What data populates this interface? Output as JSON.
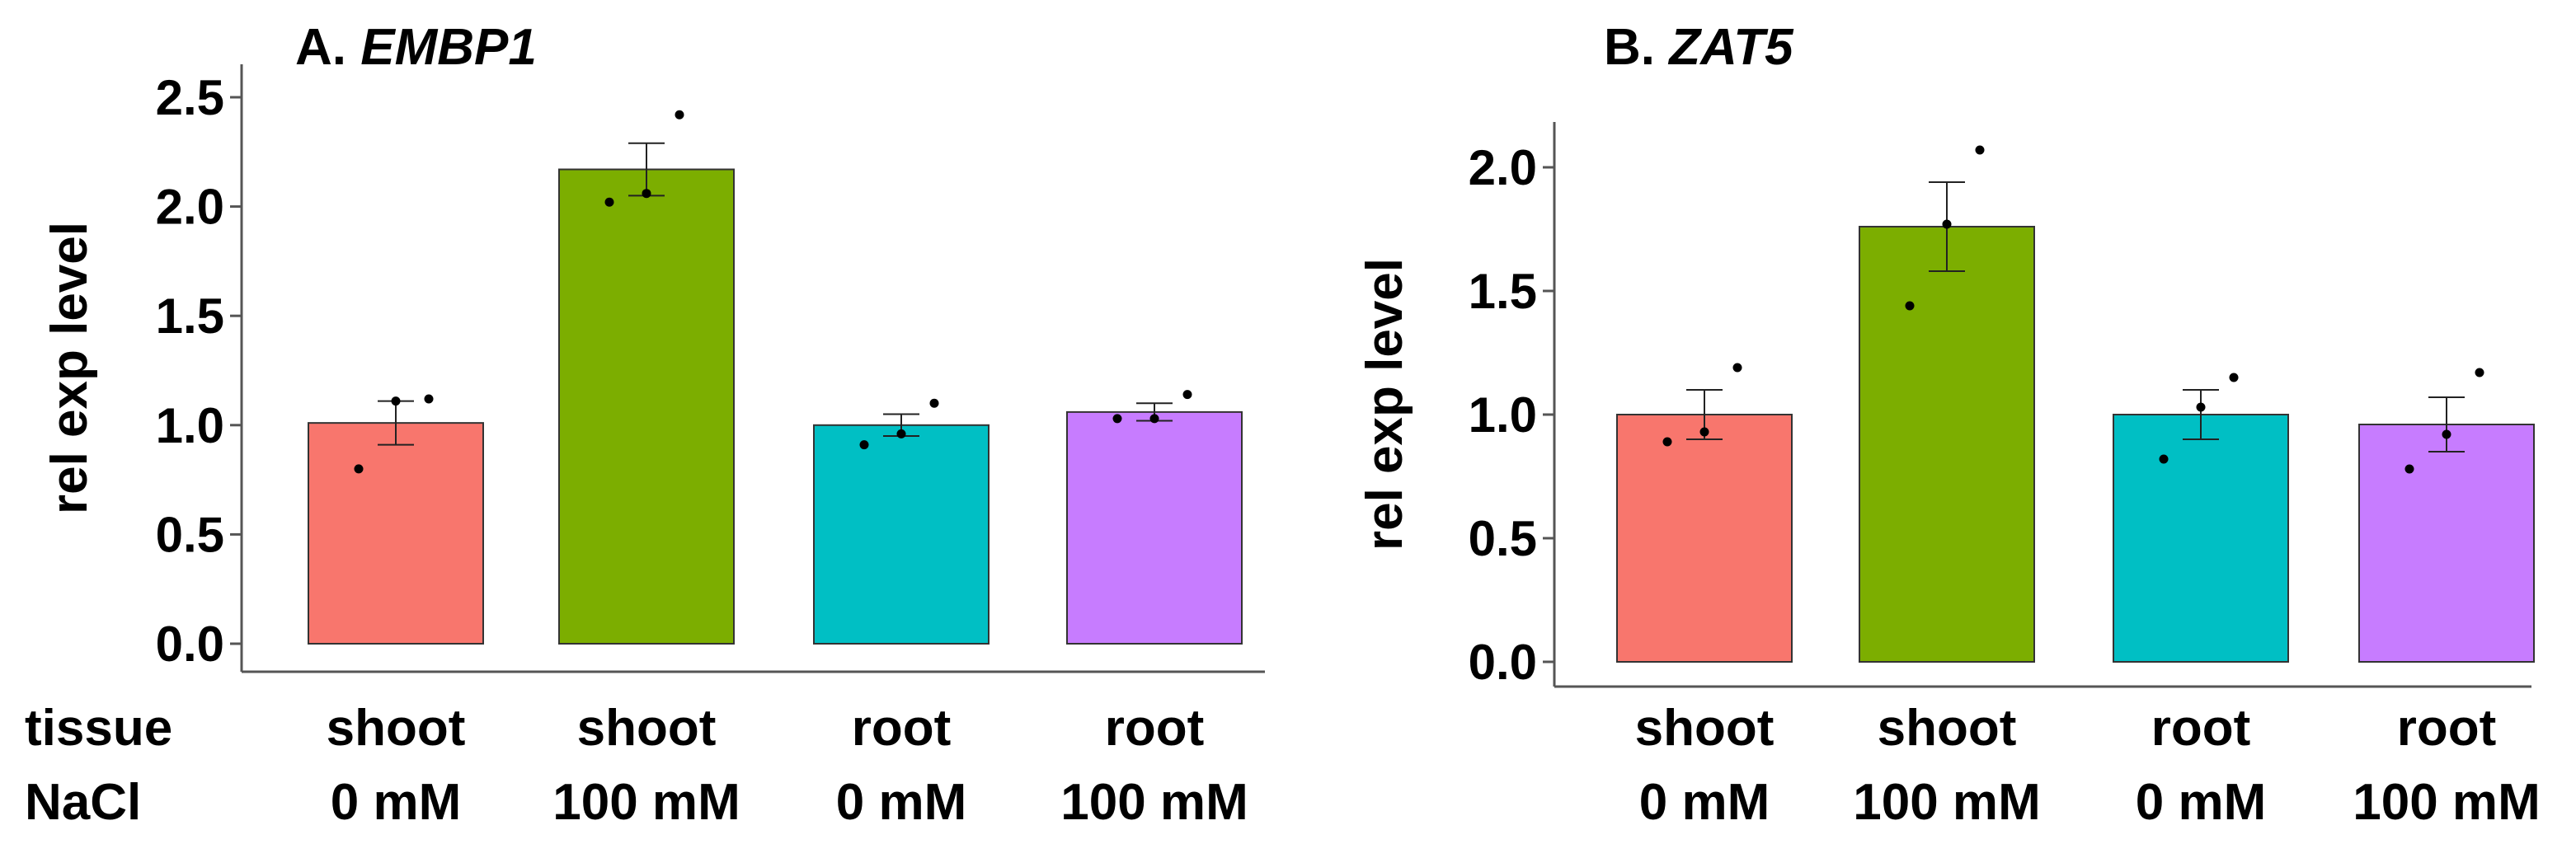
{
  "row_labels": {
    "tissue": "tissue",
    "nacl": "NaCl"
  },
  "chart_data": [
    {
      "type": "bar",
      "panel_label": "A.",
      "title": "EMBP1",
      "xlabel": "",
      "ylabel": "rel exp level",
      "ylim": [
        0,
        2.5
      ],
      "yticks": [
        "0.0",
        "0.5",
        "1.0",
        "1.5",
        "2.0",
        "2.5"
      ],
      "categories": [
        {
          "tissue": "shoot",
          "nacl": "0 mM"
        },
        {
          "tissue": "shoot",
          "nacl": "100 mM"
        },
        {
          "tissue": "root",
          "nacl": "0 mM"
        },
        {
          "tissue": "root",
          "nacl": "100 mM"
        }
      ],
      "values": [
        1.01,
        2.17,
        1.0,
        1.06
      ],
      "error": [
        0.1,
        0.12,
        0.05,
        0.04
      ],
      "points": [
        [
          0.8,
          1.11,
          1.12
        ],
        [
          2.02,
          2.06,
          2.42
        ],
        [
          0.91,
          0.96,
          1.1
        ],
        [
          1.03,
          1.03,
          1.14
        ]
      ],
      "colors": [
        "#F8766D",
        "#7CAE00",
        "#00BFC4",
        "#C77CFF"
      ],
      "grid": false,
      "legend": "none"
    },
    {
      "type": "bar",
      "panel_label": "B.",
      "title": "ZAT5",
      "xlabel": "",
      "ylabel": "rel exp level",
      "ylim": [
        0,
        2.0
      ],
      "yticks": [
        "0.0",
        "0.5",
        "1.0",
        "1.5",
        "2.0"
      ],
      "categories": [
        {
          "tissue": "shoot",
          "nacl": "0 mM"
        },
        {
          "tissue": "shoot",
          "nacl": "100 mM"
        },
        {
          "tissue": "root",
          "nacl": "0 mM"
        },
        {
          "tissue": "root",
          "nacl": "100 mM"
        }
      ],
      "values": [
        1.0,
        1.76,
        1.0,
        0.96
      ],
      "error": [
        0.1,
        0.18,
        0.1,
        0.11
      ],
      "points": [
        [
          0.89,
          0.93,
          1.19
        ],
        [
          1.44,
          1.77,
          2.07
        ],
        [
          0.82,
          1.03,
          1.15
        ],
        [
          0.78,
          0.92,
          1.17
        ]
      ],
      "colors": [
        "#F8766D",
        "#7CAE00",
        "#00BFC4",
        "#C77CFF"
      ],
      "grid": false,
      "legend": "none"
    }
  ]
}
